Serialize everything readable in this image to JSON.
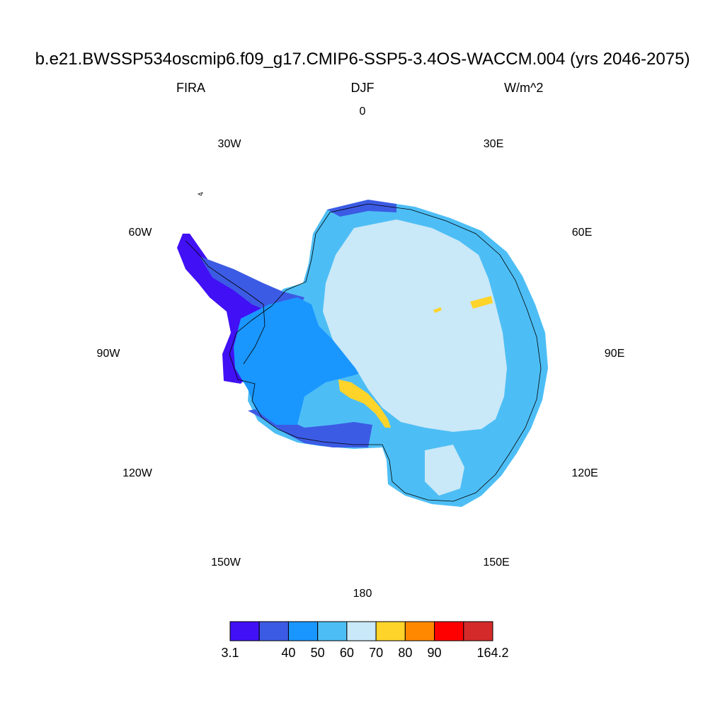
{
  "title": "b.e21.BWSSP534oscmip6.f09_g17.CMIP6-SSP5-3.4OS-WACCM.004 (yrs 2046-2075)",
  "subtitle": {
    "left": "FIRA",
    "center": "DJF",
    "right": "W/m^2"
  },
  "longitude_labels": [
    "0",
    "30E",
    "60E",
    "90E",
    "120E",
    "150E",
    "180",
    "150W",
    "120W",
    "90W",
    "60W",
    "30W"
  ],
  "colorbar": {
    "colors": [
      "#4110f5",
      "#3c5be4",
      "#1a96ff",
      "#4dbef5",
      "#c9e8f8",
      "#ffd42a",
      "#ff8800",
      "#ff0000",
      "#d42a2a"
    ],
    "tick_labels": [
      "3.1",
      "40",
      "50",
      "60",
      "70",
      "80",
      "90",
      "164.2"
    ]
  }
}
